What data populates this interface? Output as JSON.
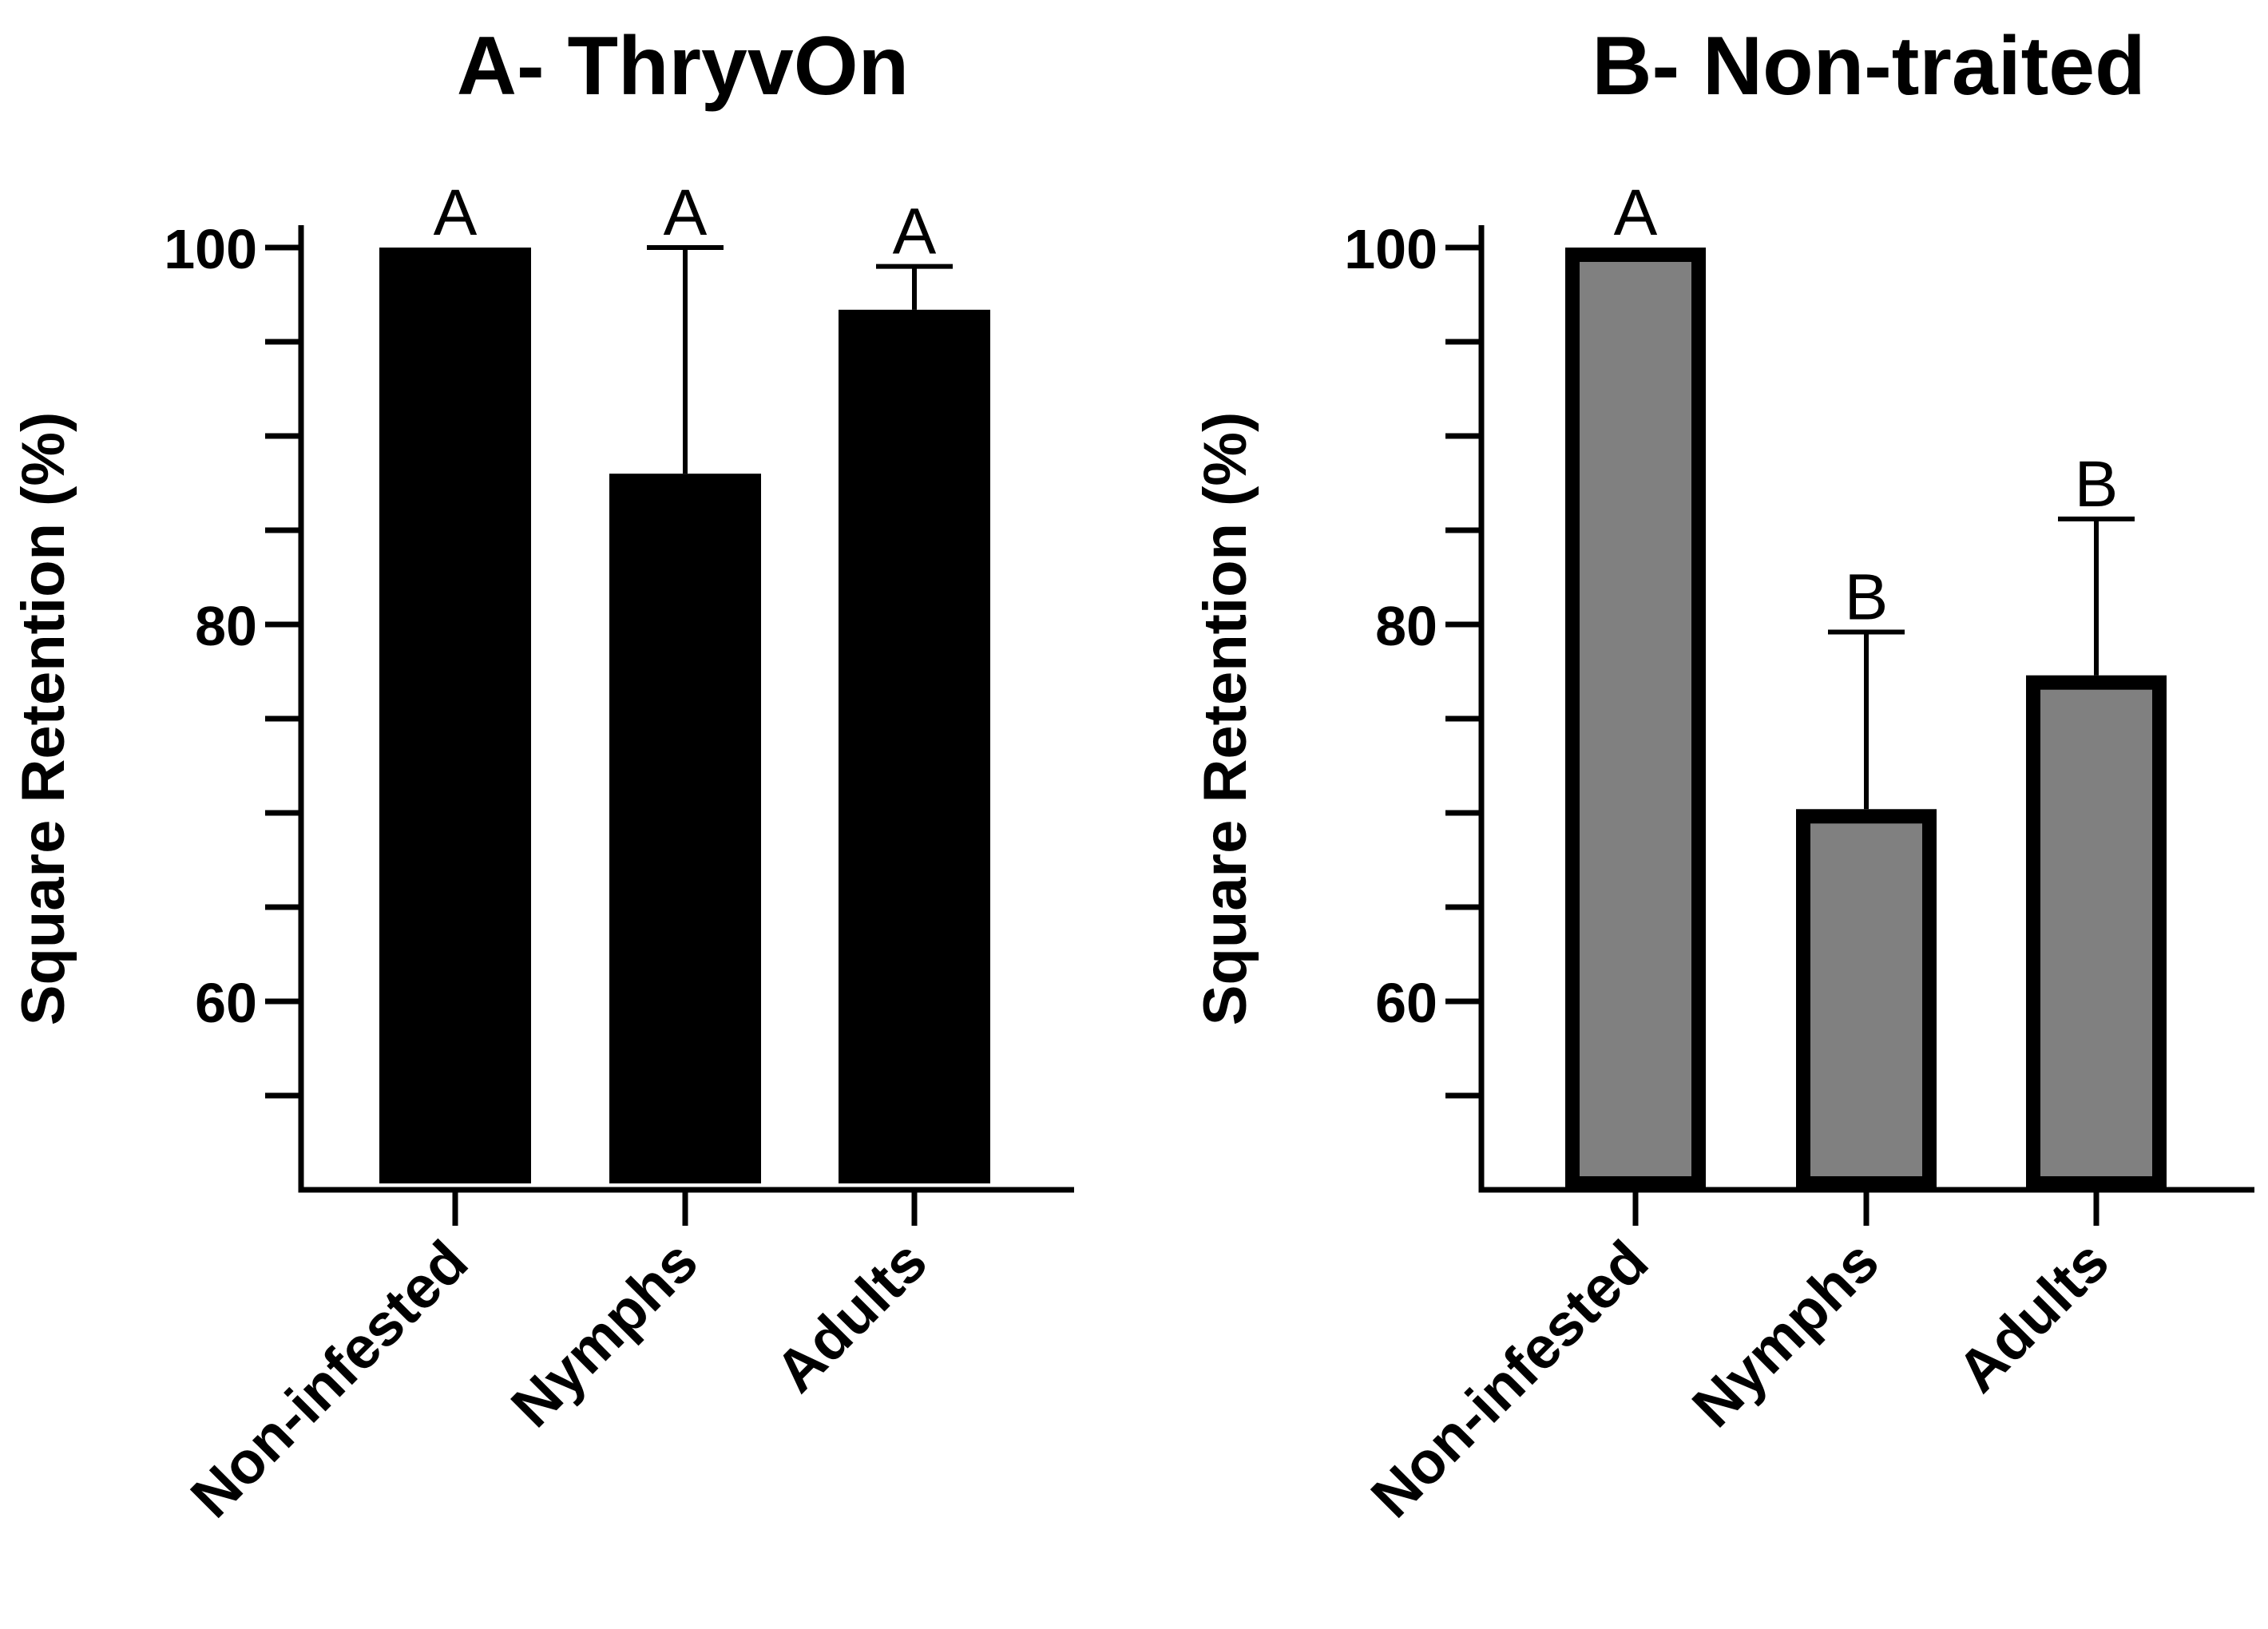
{
  "chart_data": [
    {
      "type": "bar",
      "title": "A- ThryvOn",
      "xlabel": "",
      "ylabel": "Square Retention (%)",
      "ylim": [
        50,
        100
      ],
      "yticks": [
        60,
        80,
        100
      ],
      "categories": [
        "Non-infested",
        "Nymphs",
        "Adults"
      ],
      "values": [
        100,
        88,
        96.7
      ],
      "error": [
        0,
        12,
        2.3
      ],
      "significance": [
        "A",
        "A",
        "A"
      ],
      "bar_color": "#000000"
    },
    {
      "type": "bar",
      "title": "B- Non-traited",
      "xlabel": "",
      "ylabel": "Square Retention (%)",
      "ylim": [
        50,
        100
      ],
      "yticks": [
        60,
        80,
        100
      ],
      "categories": [
        "Non-infested",
        "Nymphs",
        "Adults"
      ],
      "values": [
        100,
        70.2,
        77.3
      ],
      "error": [
        0,
        9.4,
        8.3
      ],
      "significance": [
        "A",
        "B",
        "B"
      ],
      "bar_color": "#808080"
    }
  ]
}
